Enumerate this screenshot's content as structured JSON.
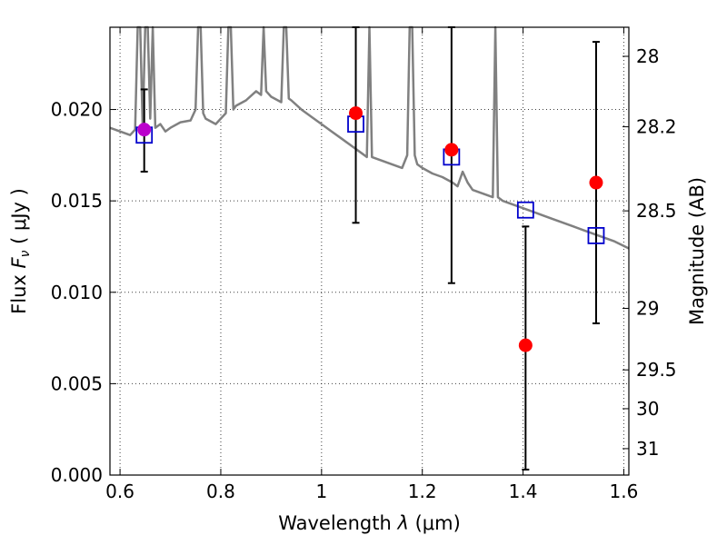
{
  "chart_data": {
    "type": "scatter",
    "title": "",
    "xlabel": "Wavelength  λ (μm)",
    "ylabel": "Flux  F_ν  ( μJy )",
    "ylabel_parts": {
      "prefix": "Flux ",
      "symbol": "F",
      "sub": "ν",
      "unit": "  ( μJy )"
    },
    "xlabel_parts": {
      "prefix": "Wavelength  ",
      "symbol": "λ",
      "unit": " (μm)"
    },
    "y2label": "Magnitude (AB)",
    "xlim": [
      0.58,
      1.61
    ],
    "ylim": [
      0.0,
      0.0245
    ],
    "grid": true,
    "x_ticks": [
      0.6,
      0.8,
      1.0,
      1.2,
      1.4,
      1.6
    ],
    "x_tick_labels": [
      "0.6",
      "0.8",
      "1",
      "1.2",
      "1.4",
      "1.6"
    ],
    "y_ticks": [
      0.0,
      0.005,
      0.01,
      0.015,
      0.02
    ],
    "y_tick_labels": [
      "0.000",
      "0.005",
      "0.010",
      "0.015",
      "0.020"
    ],
    "y2_ticks": [
      {
        "label": "28",
        "mag": 28.0
      },
      {
        "label": "28.2",
        "mag": 28.2
      },
      {
        "label": "28.5",
        "mag": 28.5
      },
      {
        "label": "29",
        "mag": 29.0
      },
      {
        "label": "29.5",
        "mag": 29.5
      },
      {
        "label": "30",
        "mag": 30.0
      },
      {
        "label": "31",
        "mag": 31.0
      }
    ],
    "colors": {
      "spectrum": "#808080",
      "observed": "#ff0000",
      "model_box": "#0000cc",
      "highlight": "#bb00cc",
      "errorbar": "#000000"
    },
    "observed_points": [
      {
        "x": 0.648,
        "y": 0.0189,
        "yerr_low": 0.0166,
        "yerr_high": 0.0211
      },
      {
        "x": 1.068,
        "y": 0.0198,
        "yerr_low": 0.0138,
        "yerr_high": 0.0245
      },
      {
        "x": 1.258,
        "y": 0.0178,
        "yerr_low": 0.0105,
        "yerr_high": 0.0245
      },
      {
        "x": 1.405,
        "y": 0.0071,
        "yerr_low": 0.0003,
        "yerr_high": 0.0136
      },
      {
        "x": 1.545,
        "y": 0.016,
        "yerr_low": 0.0083,
        "yerr_high": 0.0237
      }
    ],
    "model_points": [
      {
        "x": 0.648,
        "y": 0.0186
      },
      {
        "x": 1.068,
        "y": 0.0192
      },
      {
        "x": 1.258,
        "y": 0.0174
      },
      {
        "x": 1.405,
        "y": 0.0145
      },
      {
        "x": 1.545,
        "y": 0.0131
      }
    ],
    "spectrum": {
      "x": [
        0.58,
        0.6,
        0.62,
        0.63,
        0.635,
        0.64,
        0.645,
        0.65,
        0.655,
        0.66,
        0.665,
        0.67,
        0.68,
        0.69,
        0.7,
        0.72,
        0.74,
        0.75,
        0.755,
        0.76,
        0.765,
        0.77,
        0.79,
        0.81,
        0.815,
        0.82,
        0.825,
        0.83,
        0.85,
        0.87,
        0.88,
        0.885,
        0.89,
        0.9,
        0.92,
        0.925,
        0.93,
        0.935,
        0.94,
        0.96,
        0.98,
        1.0,
        1.02,
        1.04,
        1.06,
        1.08,
        1.09,
        1.095,
        1.1,
        1.12,
        1.14,
        1.16,
        1.17,
        1.175,
        1.18,
        1.185,
        1.19,
        1.2,
        1.22,
        1.24,
        1.26,
        1.27,
        1.28,
        1.29,
        1.3,
        1.32,
        1.34,
        1.345,
        1.35,
        1.36,
        1.38,
        1.4,
        1.42,
        1.44,
        1.46,
        1.48,
        1.5,
        1.52,
        1.54,
        1.56,
        1.58,
        1.61
      ],
      "y": [
        0.019,
        0.0188,
        0.0186,
        0.0189,
        0.0245,
        0.0245,
        0.019,
        0.0245,
        0.0245,
        0.0195,
        0.0245,
        0.019,
        0.0192,
        0.0188,
        0.019,
        0.0193,
        0.0194,
        0.02,
        0.0245,
        0.0245,
        0.0198,
        0.0195,
        0.0192,
        0.0198,
        0.0245,
        0.0245,
        0.02,
        0.0202,
        0.0205,
        0.021,
        0.0208,
        0.0245,
        0.021,
        0.0207,
        0.0204,
        0.0245,
        0.0245,
        0.0206,
        0.0205,
        0.02,
        0.0196,
        0.0192,
        0.0188,
        0.0184,
        0.018,
        0.0176,
        0.0174,
        0.0245,
        0.0174,
        0.0172,
        0.017,
        0.0168,
        0.0175,
        0.0245,
        0.0245,
        0.0175,
        0.017,
        0.0168,
        0.0165,
        0.0163,
        0.016,
        0.0158,
        0.0166,
        0.016,
        0.0156,
        0.0154,
        0.0152,
        0.0245,
        0.0152,
        0.015,
        0.0148,
        0.0146,
        0.0144,
        0.0142,
        0.014,
        0.0138,
        0.0136,
        0.0134,
        0.0132,
        0.013,
        0.0128,
        0.0124
      ]
    }
  }
}
